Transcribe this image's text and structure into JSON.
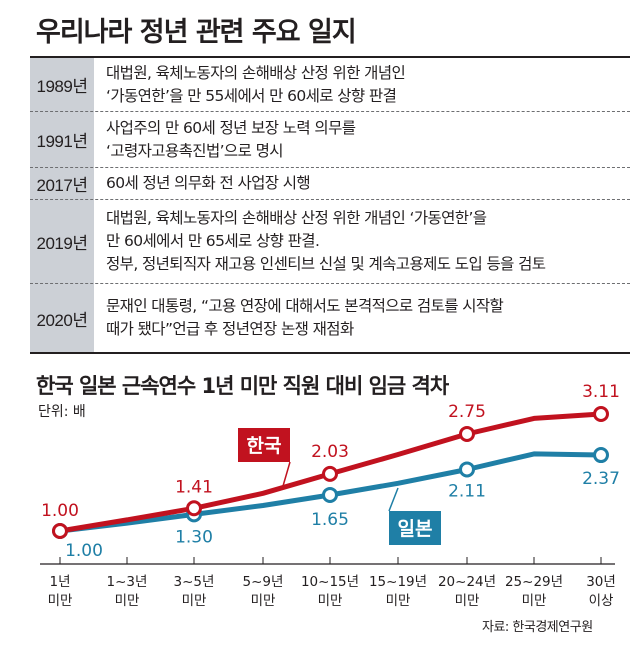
{
  "timeline": {
    "title": "우리나라 정년 관련 주요 일지",
    "rows": [
      {
        "year": "1989년",
        "lines": [
          "대법원, 육체노동자의 손해배상 산정 위한 개념인",
          "‘가동연한’을 만 55세에서 만 60세로 상향 판결"
        ]
      },
      {
        "year": "1991년",
        "lines": [
          "사업주의 만 60세 정년 보장 노력 의무를",
          "‘고령자고용촉진법’으로 명시"
        ]
      },
      {
        "year": "2017년",
        "lines": [
          "60세 정년 의무화 전 사업장 시행"
        ]
      },
      {
        "year": "2019년",
        "lines": [
          "대법원, 육체노동자의 손해배상 산정 위한 개념인 ‘가동연한’을",
          "만 60세에서 만 65세로 상향 판결.",
          "정부, 정년퇴직자 재고용 인센티브 신설 및 계속고용제도 도입 등을 검토"
        ]
      },
      {
        "year": "2020년",
        "lines": [
          "문재인 대통령, “고용 연장에 대해서도 본격적으로 검토를 시작할",
          "때가 됐다”언급 후 정년연장 논쟁 재점화"
        ]
      }
    ]
  },
  "chart_data": {
    "type": "line",
    "title": "한국  일본 근속연수 1년 미만 직원 대비 임금 격차",
    "unit": "단위: 배",
    "categories": [
      [
        "1년",
        "미만"
      ],
      [
        "1~3년",
        "미만"
      ],
      [
        "3~5년",
        "미만"
      ],
      [
        "5~9년",
        "미만"
      ],
      [
        "10~15년",
        "미만"
      ],
      [
        "15~19년",
        "미만"
      ],
      [
        "20~24년",
        "미만"
      ],
      [
        "25~29년",
        "미만"
      ],
      [
        "30년",
        "이상"
      ]
    ],
    "series": [
      {
        "name": "한국",
        "color": "#c1121f",
        "values": [
          1.0,
          1.2,
          1.41,
          1.68,
          2.03,
          2.38,
          2.75,
          3.03,
          3.11
        ],
        "labeled": [
          {
            "index": 0,
            "text": "1.00"
          },
          {
            "index": 2,
            "text": "1.41"
          },
          {
            "index": 4,
            "text": "2.03"
          },
          {
            "index": 6,
            "text": "2.75"
          },
          {
            "index": 8,
            "text": "3.11"
          }
        ]
      },
      {
        "name": "일본",
        "color": "#1f7fa6",
        "values": [
          1.0,
          1.14,
          1.3,
          1.46,
          1.65,
          1.86,
          2.11,
          2.39,
          2.37
        ],
        "labeled": [
          {
            "index": 0,
            "text": "1.00"
          },
          {
            "index": 2,
            "text": "1.30"
          },
          {
            "index": 4,
            "text": "1.65"
          },
          {
            "index": 6,
            "text": "2.11"
          },
          {
            "index": 8,
            "text": "2.37"
          }
        ]
      }
    ],
    "ylim": [
      0.6,
      3.3
    ]
  },
  "source": "자료: 한국경제연구원"
}
